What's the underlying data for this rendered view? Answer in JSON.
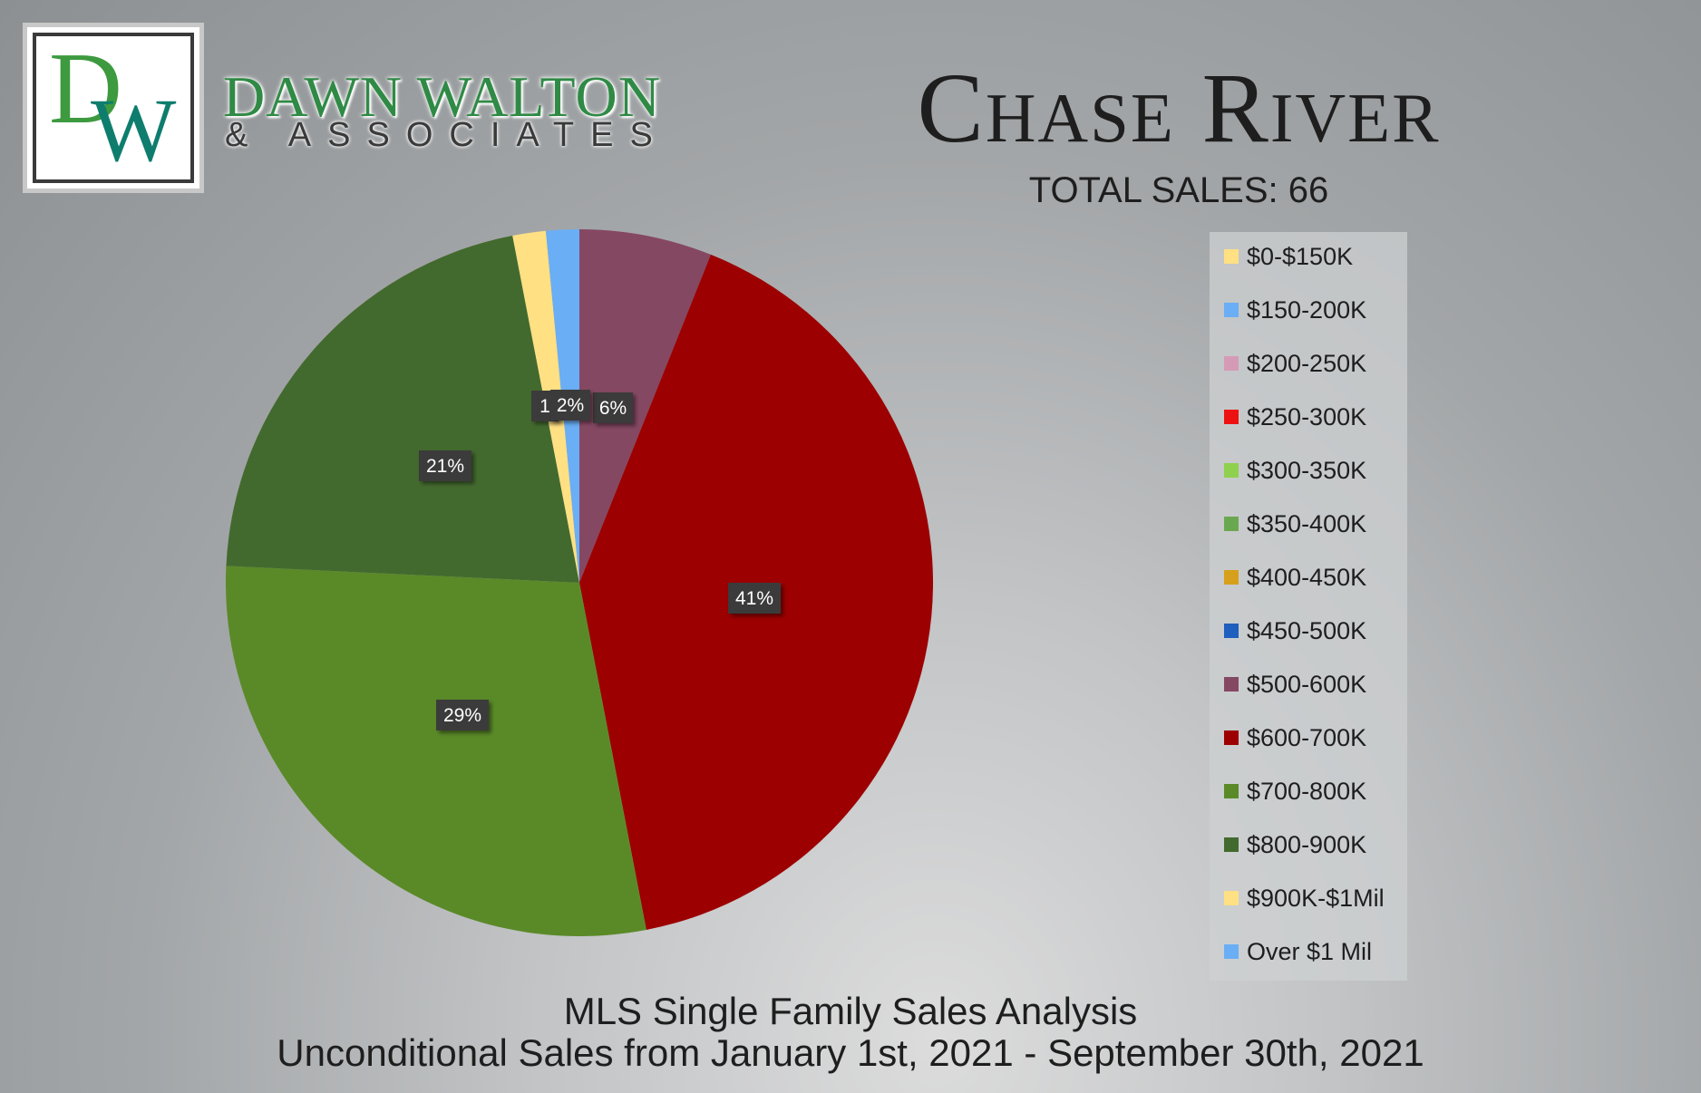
{
  "brand": {
    "logo_letters": "DW",
    "name": "DAWN WALTON",
    "subtitle": "& ASSOCIATES"
  },
  "header": {
    "title": "Chase River",
    "total_sales": "TOTAL SALES: 66"
  },
  "footer": {
    "title": "MLS Single Family Sales Analysis",
    "subtitle": "Unconditional Sales from January 1st, 2021 - September 30th, 2021"
  },
  "chart_data": {
    "type": "pie",
    "title": "",
    "legend_position": "right",
    "categories": [
      "$0-$150K",
      "$150-200K",
      "$200-250K",
      "$250-300K",
      "$300-350K",
      "$350-400K",
      "$400-450K",
      "$450-500K",
      "$500-600K",
      "$600-700K",
      "$700-800K",
      "$800-900K",
      "$900K-$1Mil",
      "Over $1 Mil"
    ],
    "colors": [
      "#ffe083",
      "#6aaef5",
      "#d59bb6",
      "#ee1111",
      "#8fd14f",
      "#6aa84f",
      "#d6a01c",
      "#1f5fbd",
      "#854863",
      "#9c0000",
      "#5a8a28",
      "#436a2e",
      "#ffe083",
      "#6aaef5"
    ],
    "values": [
      0,
      0,
      0,
      0,
      0,
      0,
      0,
      0,
      4,
      27,
      19,
      14,
      1,
      1
    ],
    "data_labels": [
      "",
      "",
      "",
      "",
      "",
      "",
      "",
      "",
      "6%",
      "41%",
      "29%",
      "21%",
      "1",
      "2%"
    ]
  }
}
